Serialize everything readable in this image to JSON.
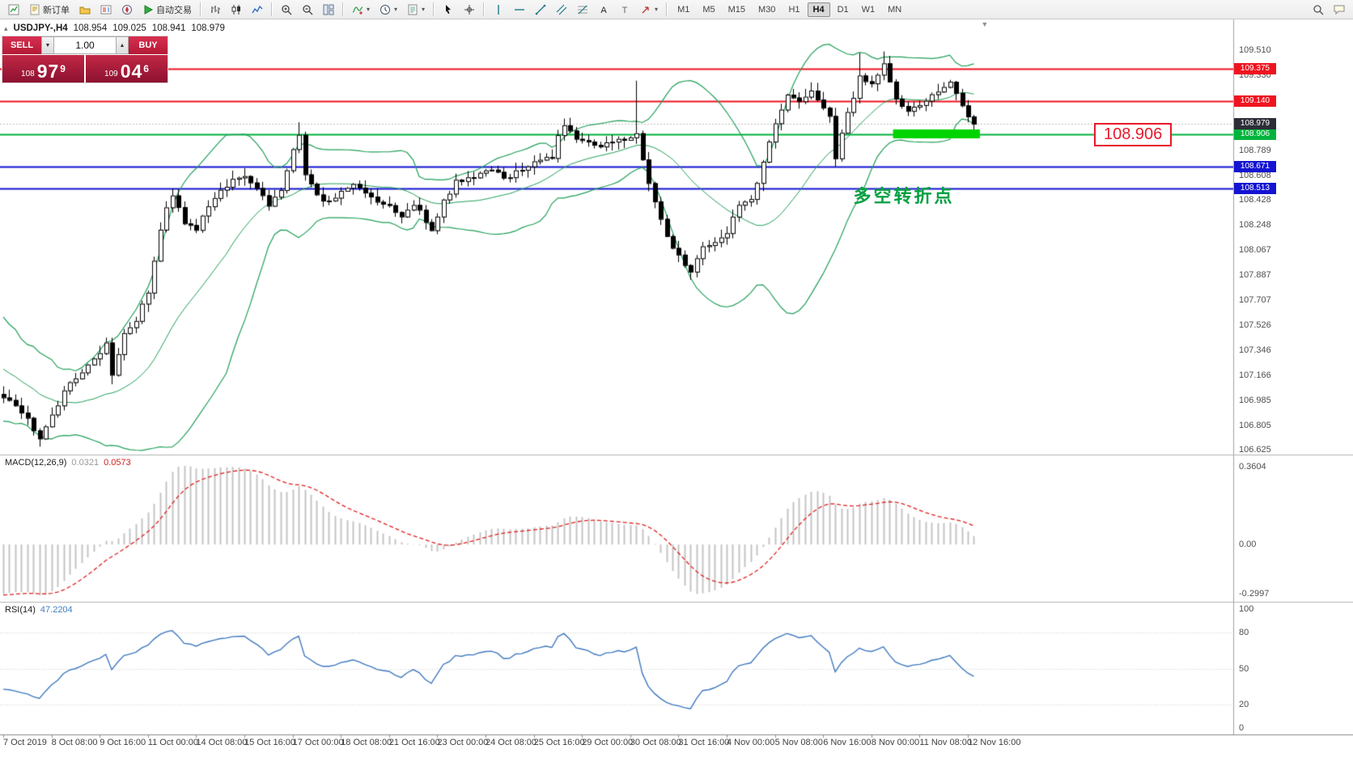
{
  "toolbar": {
    "items": [
      {
        "t": "btn",
        "name": "new-chart-button",
        "icon": "chartnew"
      },
      {
        "t": "btn",
        "name": "new-order-button",
        "icon": "neworder",
        "label": "新订单"
      },
      {
        "t": "btn",
        "name": "profiles-button",
        "icon": "profiles"
      },
      {
        "t": "btn",
        "name": "market-watch-button",
        "icon": "marketwatch"
      },
      {
        "t": "btn",
        "name": "navigator-button",
        "icon": "navigator"
      },
      {
        "t": "btn",
        "name": "autotrading-button",
        "icon": "play",
        "label": "自动交易"
      },
      {
        "t": "sep"
      },
      {
        "t": "btn",
        "name": "chart-bars-button",
        "icon": "bars"
      },
      {
        "t": "btn",
        "name": "chart-candles-button",
        "icon": "candles"
      },
      {
        "t": "btn",
        "name": "chart-line-button",
        "icon": "linechart"
      },
      {
        "t": "sep"
      },
      {
        "t": "btn",
        "name": "zoom-in-button",
        "icon": "zoomin"
      },
      {
        "t": "btn",
        "name": "zoom-out-button",
        "icon": "zoomout"
      },
      {
        "t": "btn",
        "name": "tile-windows-button",
        "icon": "tile"
      },
      {
        "t": "sep"
      },
      {
        "t": "btn",
        "name": "indicators-button",
        "icon": "indicators",
        "caret": true
      },
      {
        "t": "btn",
        "name": "periods-button",
        "icon": "clock",
        "caret": true
      },
      {
        "t": "btn",
        "name": "templates-button",
        "icon": "template",
        "caret": true
      },
      {
        "t": "sep"
      },
      {
        "t": "btn",
        "name": "cursor-button",
        "icon": "cursor"
      },
      {
        "t": "btn",
        "name": "crosshair-button",
        "icon": "crosshair"
      },
      {
        "t": "sep"
      },
      {
        "t": "btn",
        "name": "vertical-line-button",
        "icon": "vline"
      },
      {
        "t": "btn",
        "name": "horizontal-line-button",
        "icon": "hline"
      },
      {
        "t": "btn",
        "name": "trendline-button",
        "icon": "tline"
      },
      {
        "t": "btn",
        "name": "channel-button",
        "icon": "channel"
      },
      {
        "t": "btn",
        "name": "fibonacci-button",
        "icon": "fibo"
      },
      {
        "t": "btn",
        "name": "text-button",
        "icon": "texta"
      },
      {
        "t": "btn",
        "name": "label-button",
        "icon": "labelT"
      },
      {
        "t": "btn",
        "name": "arrows-button",
        "icon": "arrows",
        "caret": true
      },
      {
        "t": "sep"
      },
      {
        "t": "tf",
        "name": "tf-m1-button",
        "label": "M1"
      },
      {
        "t": "tf",
        "name": "tf-m5-button",
        "label": "M5"
      },
      {
        "t": "tf",
        "name": "tf-m15-button",
        "label": "M15"
      },
      {
        "t": "tf",
        "name": "tf-m30-button",
        "label": "M30"
      },
      {
        "t": "tf",
        "name": "tf-h1-button",
        "label": "H1"
      },
      {
        "t": "tf",
        "name": "tf-h4-button",
        "label": "H4",
        "active": true
      },
      {
        "t": "tf",
        "name": "tf-d1-button",
        "label": "D1"
      },
      {
        "t": "tf",
        "name": "tf-w1-button",
        "label": "W1"
      },
      {
        "t": "tf",
        "name": "tf-mn-button",
        "label": "MN"
      }
    ],
    "right_items": [
      {
        "name": "search-button",
        "icon": "search"
      },
      {
        "name": "chat-button",
        "icon": "chat"
      }
    ]
  },
  "chart_header": {
    "collapse_icon": "▴",
    "symbol": "USDJPY-,H4",
    "open": "108.954",
    "high": "109.025",
    "low": "108.941",
    "close": "108.979"
  },
  "trade_panel": {
    "sell_label": "SELL",
    "buy_label": "BUY",
    "volume": "1.00",
    "spin_down": "▼",
    "spin_up": "▲",
    "sell_price": {
      "prefix": "108",
      "big": "97",
      "sup": "9"
    },
    "buy_price": {
      "prefix": "109",
      "big": "04",
      "sup": "6"
    }
  },
  "chart_data": {
    "type": "candlestick",
    "symbol": "USDJPY-",
    "timeframe": "H4",
    "y_axis_labels": [
      "109.510",
      "109.330",
      "109.149",
      "108.969",
      "108.789",
      "108.608",
      "108.428",
      "108.248",
      "108.067",
      "107.887",
      "107.707",
      "107.526",
      "107.346",
      "107.166",
      "106.985",
      "106.805",
      "106.625"
    ],
    "x_labels": [
      "7 Oct 2019",
      "8 Oct 08:00",
      "9 Oct 16:00",
      "11 Oct 00:00",
      "14 Oct 08:00",
      "15 Oct 16:00",
      "17 Oct 00:00",
      "18 Oct 08:00",
      "21 Oct 16:00",
      "23 Oct 00:00",
      "24 Oct 08:00",
      "25 Oct 16:00",
      "29 Oct 00:00",
      "30 Oct 08:00",
      "31 Oct 16:00",
      "4 Nov 00:00",
      "5 Nov 08:00",
      "6 Nov 16:00",
      "8 Nov 00:00",
      "11 Nov 08:00",
      "12 Nov 16:00"
    ],
    "y_range": {
      "top": 109.51,
      "step": 0.1803
    },
    "price": {
      "bar_count": 162,
      "last_close": 108.979,
      "anchors": [
        [
          0,
          107.02
        ],
        [
          2,
          106.93
        ],
        [
          4,
          106.84
        ],
        [
          6,
          106.72
        ],
        [
          8,
          106.88
        ],
        [
          10,
          107.05
        ],
        [
          12,
          107.16
        ],
        [
          14,
          107.24
        ],
        [
          16,
          107.32
        ],
        [
          17,
          107.42
        ],
        [
          18,
          107.18
        ],
        [
          20,
          107.46
        ],
        [
          22,
          107.55
        ],
        [
          24,
          107.78
        ],
        [
          25,
          108.0
        ],
        [
          26,
          108.2
        ],
        [
          27,
          108.36
        ],
        [
          28,
          108.48
        ],
        [
          30,
          108.26
        ],
        [
          32,
          108.2
        ],
        [
          34,
          108.4
        ],
        [
          36,
          108.5
        ],
        [
          38,
          108.58
        ],
        [
          40,
          108.62
        ],
        [
          42,
          108.5
        ],
        [
          44,
          108.4
        ],
        [
          46,
          108.52
        ],
        [
          48,
          108.78
        ],
        [
          49,
          108.9
        ],
        [
          50,
          108.62
        ],
        [
          52,
          108.46
        ],
        [
          54,
          108.42
        ],
        [
          56,
          108.5
        ],
        [
          58,
          108.55
        ],
        [
          60,
          108.5
        ],
        [
          62,
          108.42
        ],
        [
          64,
          108.38
        ],
        [
          66,
          108.3
        ],
        [
          68,
          108.4
        ],
        [
          70,
          108.28
        ],
        [
          71,
          108.2
        ],
        [
          73,
          108.42
        ],
        [
          75,
          108.56
        ],
        [
          77,
          108.6
        ],
        [
          79,
          108.62
        ],
        [
          81,
          108.66
        ],
        [
          83,
          108.58
        ],
        [
          85,
          108.64
        ],
        [
          87,
          108.68
        ],
        [
          89,
          108.72
        ],
        [
          91,
          108.75
        ],
        [
          92,
          108.88
        ],
        [
          93,
          108.96
        ],
        [
          95,
          108.86
        ],
        [
          97,
          108.84
        ],
        [
          99,
          108.8
        ],
        [
          101,
          108.86
        ],
        [
          103,
          108.88
        ],
        [
          105,
          108.9
        ],
        [
          106,
          108.72
        ],
        [
          108,
          108.42
        ],
        [
          110,
          108.16
        ],
        [
          112,
          108.02
        ],
        [
          114,
          107.92
        ],
        [
          116,
          108.1
        ],
        [
          118,
          108.12
        ],
        [
          120,
          108.2
        ],
        [
          122,
          108.38
        ],
        [
          124,
          108.42
        ],
        [
          126,
          108.7
        ],
        [
          128,
          109.0
        ],
        [
          130,
          109.2
        ],
        [
          132,
          109.16
        ],
        [
          134,
          109.2
        ],
        [
          136,
          109.1
        ],
        [
          137,
          109.05
        ],
        [
          138,
          108.74
        ],
        [
          140,
          109.05
        ],
        [
          142,
          109.32
        ],
        [
          144,
          109.26
        ],
        [
          146,
          109.4
        ],
        [
          148,
          109.16
        ],
        [
          150,
          109.09
        ],
        [
          152,
          109.1
        ],
        [
          154,
          109.18
        ],
        [
          156,
          109.26
        ],
        [
          157,
          109.28
        ],
        [
          159,
          109.1
        ],
        [
          161,
          108.979
        ]
      ],
      "wicks": [
        {
          "bar": 6,
          "low": 106.65
        },
        {
          "bar": 18,
          "low": 107.1
        },
        {
          "bar": 49,
          "high": 108.99
        },
        {
          "bar": 105,
          "high": 109.29
        },
        {
          "bar": 114,
          "low": 107.86
        },
        {
          "bar": 138,
          "low": 108.67
        },
        {
          "bar": 142,
          "high": 109.49
        },
        {
          "bar": 146,
          "high": 109.5
        },
        {
          "bar": 161,
          "low": 108.93
        }
      ],
      "lead_in": [
        108.0,
        107.9,
        107.78,
        107.88,
        107.72,
        107.62,
        107.72,
        107.56,
        107.46,
        107.56,
        107.42,
        107.32,
        107.42,
        107.26,
        107.2,
        107.3,
        107.16,
        107.1,
        107.2,
        107.06,
        107.0,
        107.1,
        106.98,
        107.06,
        107.0,
        107.03
      ]
    },
    "overlays": {
      "bollinger": {
        "period": 20,
        "deviation": 2,
        "color": "#22a05a"
      },
      "hlines": [
        {
          "price": 109.375,
          "label": "109.375",
          "color": "#ef1420"
        },
        {
          "price": 109.14,
          "label": "109.140",
          "color": "#ef1420"
        },
        {
          "price": 108.906,
          "label": "108.906",
          "color": "#00b43c"
        },
        {
          "price": 108.671,
          "label": "108.671",
          "color": "#1414d2"
        },
        {
          "price": 108.513,
          "label": "108.513",
          "color": "#1414d2"
        }
      ],
      "bid_line": {
        "price": 108.979,
        "label": "108.979",
        "color": "#2d2d38"
      },
      "highlight_rect": {
        "price": 108.906,
        "bar_start": 148,
        "bar_end": 161.6,
        "color": "#00d400"
      },
      "annotation": {
        "text": "多空转折点",
        "color": "#00a040",
        "anchor_bar": 141,
        "anchor_price": 108.56
      },
      "callout": {
        "text": "108.906",
        "color": "#e8192c",
        "anchor_price": 108.906
      }
    },
    "indicators": [
      {
        "id": "macd",
        "display": "MACD(12,26,9)",
        "value_main": "0.0321",
        "value_signal": "0.0573",
        "scale_labels": [
          "0.3604",
          "0.00",
          "-0.2997"
        ],
        "histogram_color": "#c4c4c4",
        "signal_color": "#e02020"
      },
      {
        "id": "rsi",
        "display": "RSI(14)",
        "value": "47.2204",
        "levels": [
          "100",
          "80",
          "50",
          "20",
          "0"
        ],
        "line_color": "#4079c0"
      }
    ]
  }
}
